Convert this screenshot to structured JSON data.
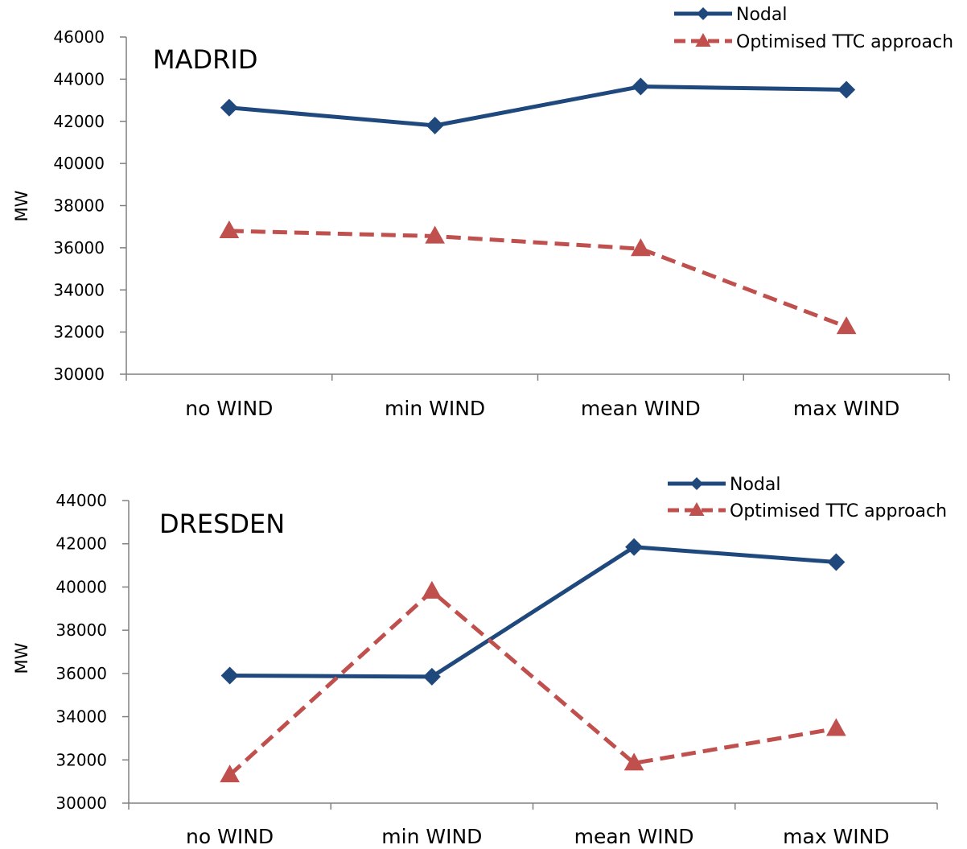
{
  "chart_data": [
    {
      "type": "line",
      "title": "MADRID",
      "xlabel": "",
      "ylabel": "MW",
      "categories": [
        "no WIND",
        "min WIND",
        "mean WIND",
        "max WIND"
      ],
      "ylim": [
        30000,
        46000
      ],
      "yticks": [
        30000,
        32000,
        34000,
        36000,
        38000,
        40000,
        42000,
        44000,
        46000
      ],
      "legend_position": "top-right",
      "grid": false,
      "series": [
        {
          "name": "Nodal",
          "values": [
            42650,
            41800,
            43650,
            43500
          ],
          "color": "#1f497d",
          "style": "solid",
          "marker": "diamond"
        },
        {
          "name": "Optimised TTC approach",
          "values": [
            36800,
            36550,
            35950,
            32250
          ],
          "color": "#c0504d",
          "style": "dashed",
          "marker": "triangle"
        }
      ]
    },
    {
      "type": "line",
      "title": "DRESDEN",
      "xlabel": "",
      "ylabel": "MW",
      "categories": [
        "no WIND",
        "min WIND",
        "mean WIND",
        "max WIND"
      ],
      "ylim": [
        30000,
        44000
      ],
      "yticks": [
        30000,
        32000,
        34000,
        36000,
        38000,
        40000,
        42000,
        44000
      ],
      "legend_position": "top-right",
      "grid": false,
      "series": [
        {
          "name": "Nodal",
          "values": [
            35900,
            35850,
            41850,
            41150
          ],
          "color": "#1f497d",
          "style": "solid",
          "marker": "diamond"
        },
        {
          "name": "Optimised TTC approach",
          "values": [
            31300,
            39800,
            31850,
            33450
          ],
          "color": "#c0504d",
          "style": "dashed",
          "marker": "triangle"
        }
      ]
    }
  ]
}
